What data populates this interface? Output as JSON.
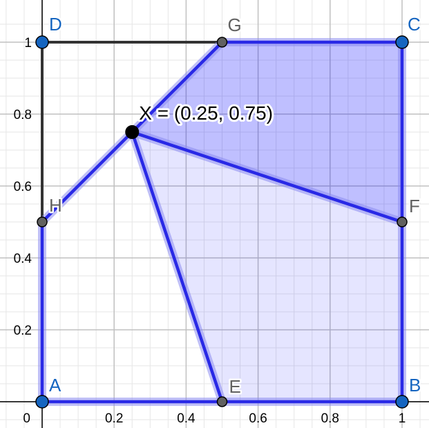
{
  "graph": {
    "x_ticks": [
      {
        "value": 0.2,
        "label": "0.2"
      },
      {
        "value": 0.4,
        "label": "0.4"
      },
      {
        "value": 0.6,
        "label": "0.6"
      },
      {
        "value": 0.8,
        "label": "0.8"
      },
      {
        "value": 1,
        "label": "1"
      }
    ],
    "y_ticks": [
      {
        "value": 0.2,
        "label": "0.2"
      },
      {
        "value": 0.4,
        "label": "0.4"
      },
      {
        "value": 0.6,
        "label": "0.6"
      },
      {
        "value": 0.8,
        "label": "0.8"
      },
      {
        "value": 1,
        "label": "1"
      }
    ],
    "origin_label": "0",
    "points": [
      {
        "name": "A",
        "x": 0,
        "y": 0,
        "color": "#1565c0",
        "label_color": "#1565c0"
      },
      {
        "name": "B",
        "x": 1,
        "y": 0,
        "color": "#1565c0",
        "label_color": "#1565c0"
      },
      {
        "name": "C",
        "x": 1,
        "y": 1,
        "color": "#1565c0",
        "label_color": "#1565c0"
      },
      {
        "name": "D",
        "x": 0,
        "y": 1,
        "color": "#1565c0",
        "label_color": "#1565c0"
      },
      {
        "name": "E",
        "x": 0.5,
        "y": 0,
        "color": "#616161",
        "label_color": "#616161"
      },
      {
        "name": "F",
        "x": 1,
        "y": 0.5,
        "color": "#616161",
        "label_color": "#616161"
      },
      {
        "name": "G",
        "x": 0.5,
        "y": 1,
        "color": "#616161",
        "label_color": "#616161"
      },
      {
        "name": "H",
        "x": 0,
        "y": 0.5,
        "color": "#616161",
        "label_color": "#616161"
      }
    ],
    "x_point": {
      "name": "X",
      "x": 0.25,
      "y": 0.75,
      "label": "X = (0.25, 0.75)",
      "color": "#000000"
    },
    "region_upper": {
      "vertices": [
        "X",
        "G",
        "C",
        "F"
      ],
      "fill": "#0000ff",
      "opacity": 0.25
    },
    "region_lower": {
      "vertices": [
        "X",
        "F",
        "B",
        "E"
      ],
      "fill": "#0000ff",
      "opacity": 0.1
    },
    "blue_segments": [
      [
        "A",
        "E"
      ],
      [
        "E",
        "B"
      ],
      [
        "B",
        "F"
      ],
      [
        "F",
        "C"
      ],
      [
        "C",
        "G"
      ],
      [
        "G",
        "X"
      ],
      [
        "X",
        "H"
      ],
      [
        "H",
        "A"
      ],
      [
        "X",
        "E"
      ],
      [
        "X",
        "F"
      ]
    ],
    "black_segments": [
      [
        "H",
        "D"
      ],
      [
        "D",
        "G"
      ]
    ],
    "colors": {
      "blue_line": "#2929e6",
      "black_line": "#333333",
      "grid_major": "#c0c0c0",
      "grid_minor": "#e6e6e6",
      "axis": "#000000"
    }
  }
}
